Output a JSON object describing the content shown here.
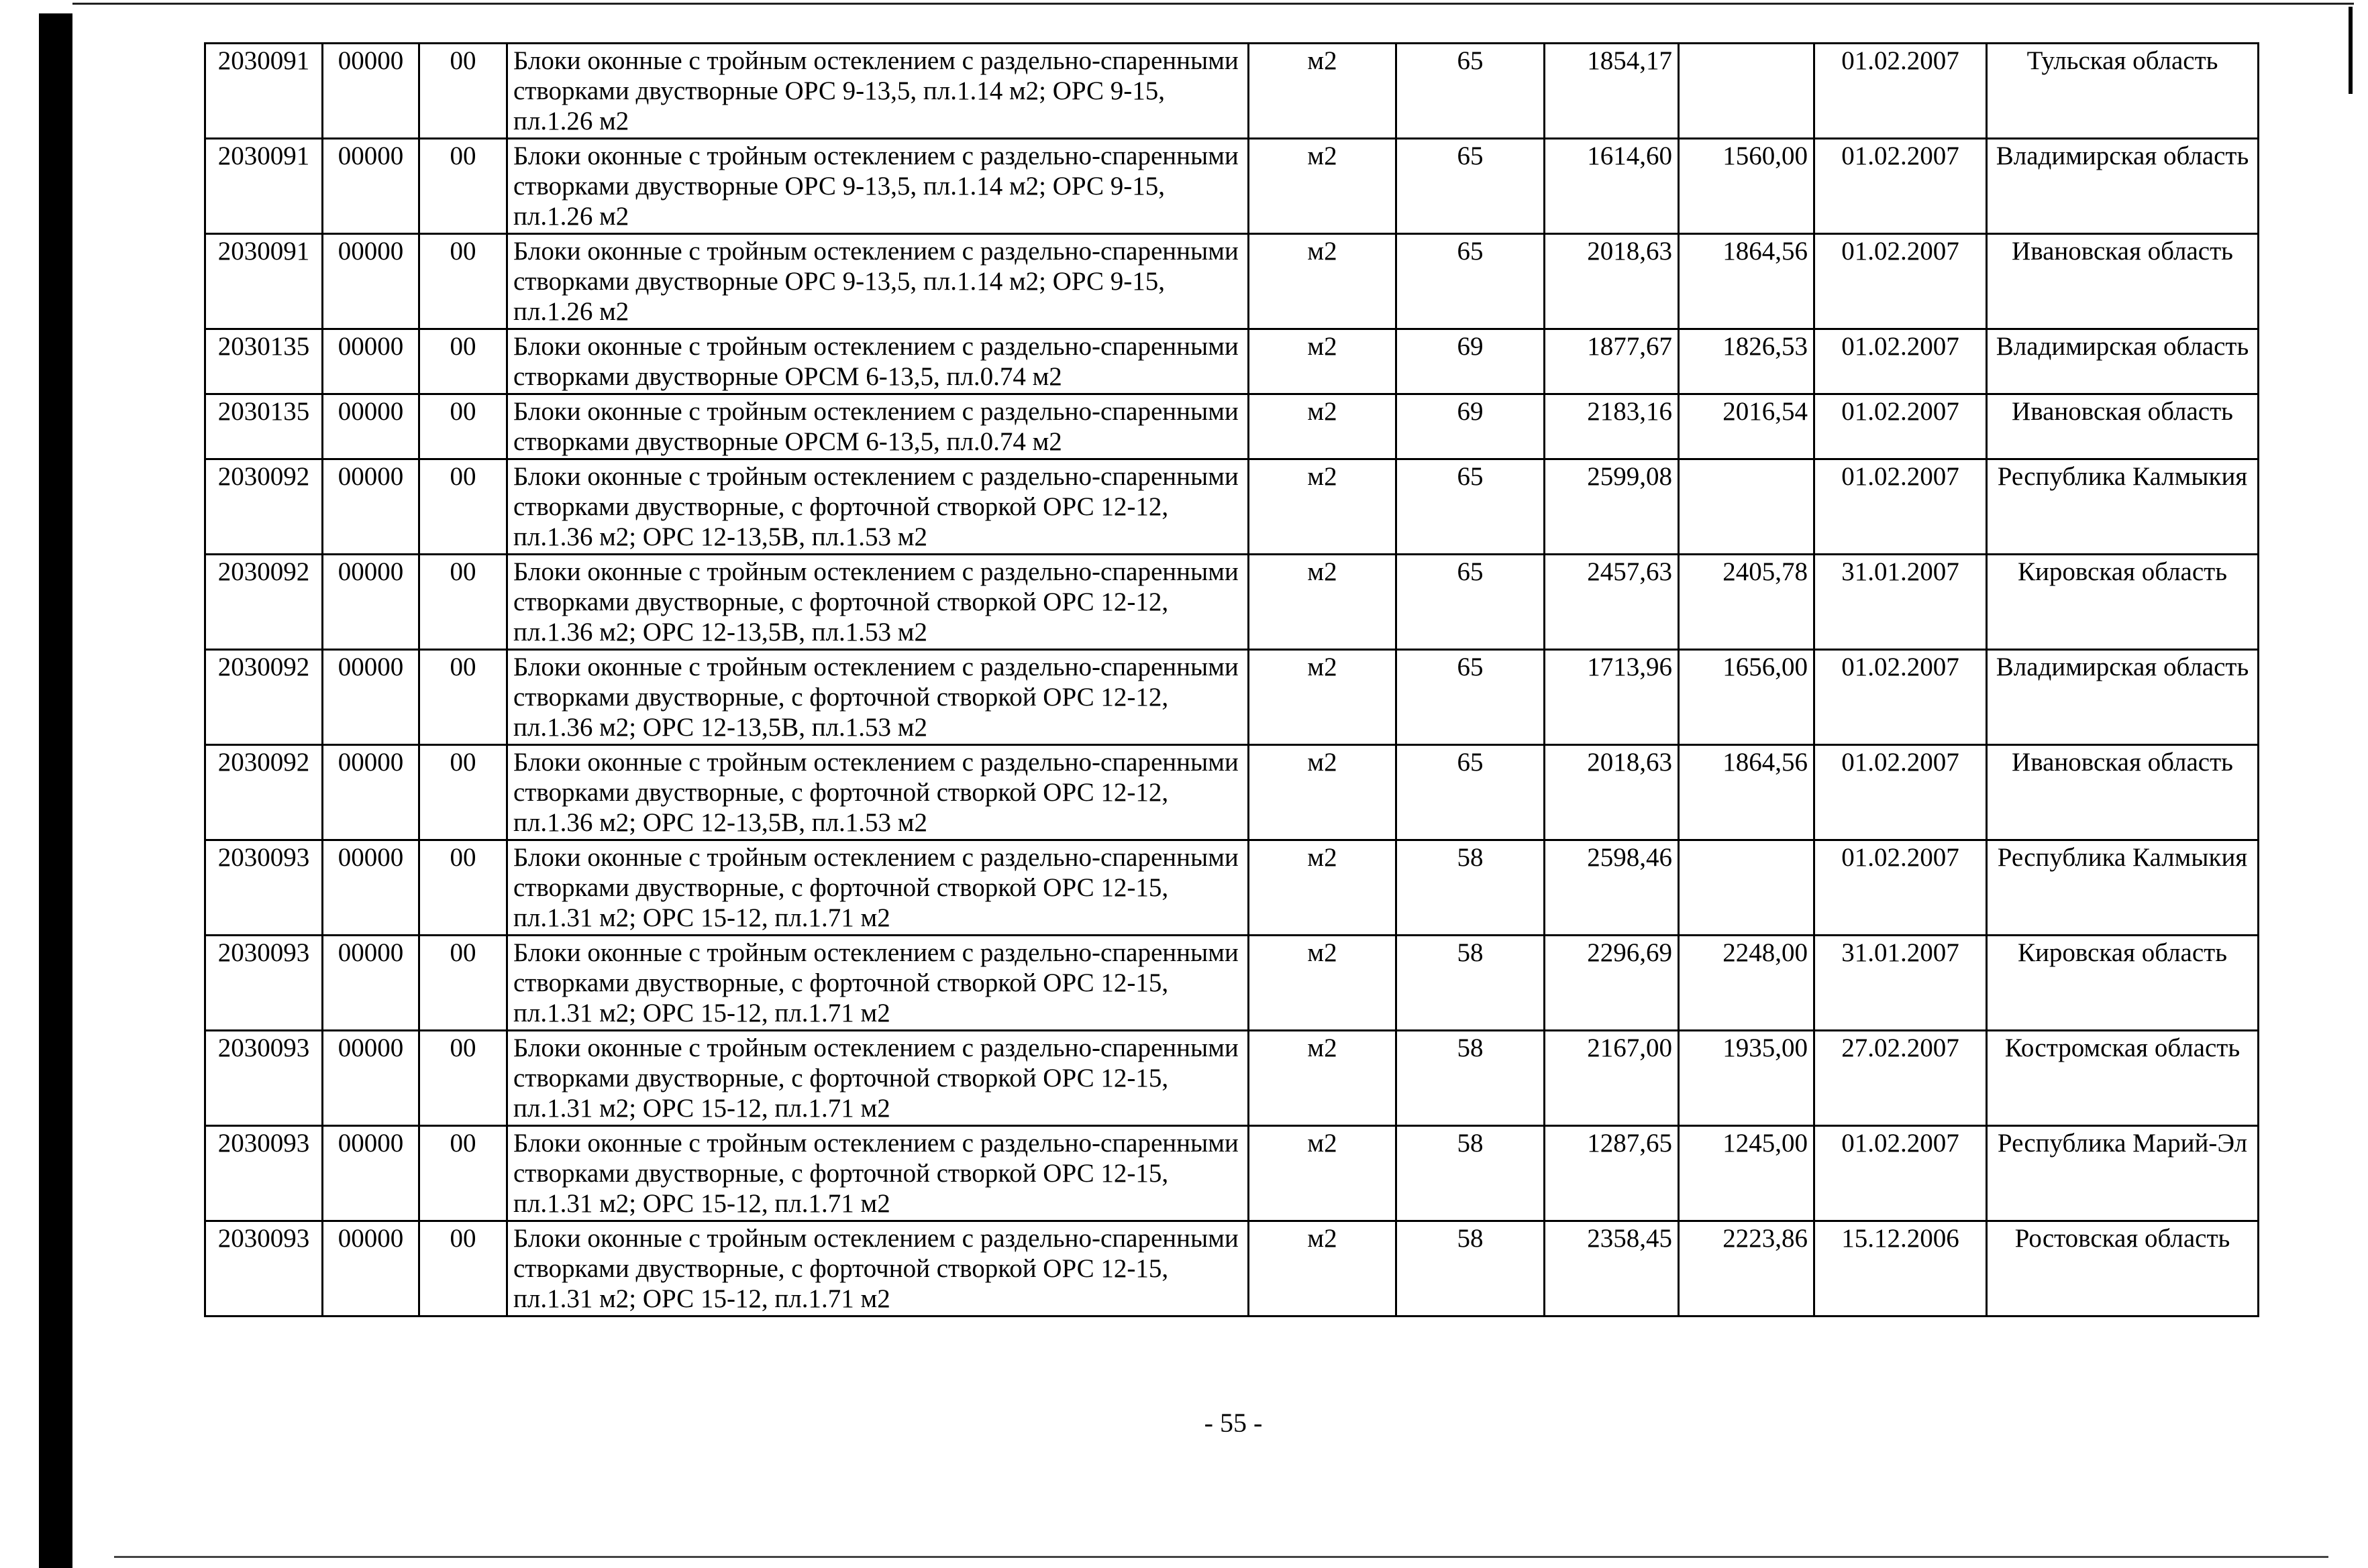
{
  "page_number": "- 55 -",
  "rows": [
    {
      "code": "2030091",
      "sub": "00000",
      "ext": "00",
      "name": "Блоки оконные с тройным остеклением с раздельно-спаренными створками двустворные ОРС 9-13,5, пл.1.14 м2; ОРС 9-15, пл.1.26 м2",
      "unit": "м2",
      "group": "65",
      "price1": "1854,17",
      "price2": "",
      "date": "01.02.2007",
      "region": "Тульская область"
    },
    {
      "code": "2030091",
      "sub": "00000",
      "ext": "00",
      "name": "Блоки оконные с тройным остеклением с раздельно-спаренными створками двустворные ОРС 9-13,5, пл.1.14 м2; ОРС 9-15, пл.1.26 м2",
      "unit": "м2",
      "group": "65",
      "price1": "1614,60",
      "price2": "1560,00",
      "date": "01.02.2007",
      "region": "Владимирская область"
    },
    {
      "code": "2030091",
      "sub": "00000",
      "ext": "00",
      "name": "Блоки оконные с тройным остеклением с раздельно-спаренными створками двустворные ОРС 9-13,5, пл.1.14 м2; ОРС 9-15, пл.1.26 м2",
      "unit": "м2",
      "group": "65",
      "price1": "2018,63",
      "price2": "1864,56",
      "date": "01.02.2007",
      "region": "Ивановская область"
    },
    {
      "code": "2030135",
      "sub": "00000",
      "ext": "00",
      "name": "Блоки оконные с тройным остеклением с раздельно-спаренными створками двустворные ОРСМ 6-13,5, пл.0.74 м2",
      "unit": "м2",
      "group": "69",
      "price1": "1877,67",
      "price2": "1826,53",
      "date": "01.02.2007",
      "region": "Владимирская область"
    },
    {
      "code": "2030135",
      "sub": "00000",
      "ext": "00",
      "name": "Блоки оконные с тройным остеклением с раздельно-спаренными створками двустворные ОРСМ 6-13,5, пл.0.74 м2",
      "unit": "м2",
      "group": "69",
      "price1": "2183,16",
      "price2": "2016,54",
      "date": "01.02.2007",
      "region": "Ивановская область"
    },
    {
      "code": "2030092",
      "sub": "00000",
      "ext": "00",
      "name": "Блоки оконные с тройным остеклением с раздельно-спаренными створками двустворные, с форточной створкой ОРС 12-12, пл.1.36 м2; ОРС 12-13,5В, пл.1.53 м2",
      "unit": "м2",
      "group": "65",
      "price1": "2599,08",
      "price2": "",
      "date": "01.02.2007",
      "region": "Республика Калмыкия"
    },
    {
      "code": "2030092",
      "sub": "00000",
      "ext": "00",
      "name": "Блоки оконные с тройным остеклением с раздельно-спаренными створками двустворные, с форточной створкой ОРС 12-12, пл.1.36 м2; ОРС 12-13,5В, пл.1.53 м2",
      "unit": "м2",
      "group": "65",
      "price1": "2457,63",
      "price2": "2405,78",
      "date": "31.01.2007",
      "region": "Кировская область"
    },
    {
      "code": "2030092",
      "sub": "00000",
      "ext": "00",
      "name": "Блоки оконные с тройным остеклением с раздельно-спаренными створками двустворные, с форточной створкой ОРС 12-12, пл.1.36 м2; ОРС 12-13,5В, пл.1.53 м2",
      "unit": "м2",
      "group": "65",
      "price1": "1713,96",
      "price2": "1656,00",
      "date": "01.02.2007",
      "region": "Владимирская область"
    },
    {
      "code": "2030092",
      "sub": "00000",
      "ext": "00",
      "name": "Блоки оконные с тройным остеклением с раздельно-спаренными створками двустворные, с форточной створкой ОРС 12-12, пл.1.36 м2; ОРС 12-13,5В, пл.1.53 м2",
      "unit": "м2",
      "group": "65",
      "price1": "2018,63",
      "price2": "1864,56",
      "date": "01.02.2007",
      "region": "Ивановская область"
    },
    {
      "code": "2030093",
      "sub": "00000",
      "ext": "00",
      "name": "Блоки оконные с тройным остеклением с раздельно-спаренными створками двустворные, с форточной створкой ОРС 12-15, пл.1.31 м2; ОРС 15-12, пл.1.71 м2",
      "unit": "м2",
      "group": "58",
      "price1": "2598,46",
      "price2": "",
      "date": "01.02.2007",
      "region": "Республика Калмыкия"
    },
    {
      "code": "2030093",
      "sub": "00000",
      "ext": "00",
      "name": "Блоки оконные с тройным остеклением с раздельно-спаренными створками двустворные, с форточной створкой ОРС 12-15, пл.1.31 м2; ОРС 15-12, пл.1.71 м2",
      "unit": "м2",
      "group": "58",
      "price1": "2296,69",
      "price2": "2248,00",
      "date": "31.01.2007",
      "region": "Кировская область"
    },
    {
      "code": "2030093",
      "sub": "00000",
      "ext": "00",
      "name": "Блоки оконные с тройным остеклением с раздельно-спаренными створками двустворные, с форточной створкой ОРС 12-15, пл.1.31 м2; ОРС 15-12, пл.1.71 м2",
      "unit": "м2",
      "group": "58",
      "price1": "2167,00",
      "price2": "1935,00",
      "date": "27.02.2007",
      "region": "Костромская область"
    },
    {
      "code": "2030093",
      "sub": "00000",
      "ext": "00",
      "name": "Блоки оконные с тройным остеклением с раздельно-спаренными створками двустворные, с форточной створкой ОРС 12-15, пл.1.31 м2; ОРС 15-12, пл.1.71 м2",
      "unit": "м2",
      "group": "58",
      "price1": "1287,65",
      "price2": "1245,00",
      "date": "01.02.2007",
      "region": "Республика Марий-Эл"
    },
    {
      "code": "2030093",
      "sub": "00000",
      "ext": "00",
      "name": "Блоки оконные с тройным остеклением с раздельно-спаренными створками двустворные, с форточной створкой ОРС 12-15, пл.1.31 м2; ОРС 15-12, пл.1.71 м2",
      "unit": "м2",
      "group": "58",
      "price1": "2358,45",
      "price2": "2223,86",
      "date": "15.12.2006",
      "region": "Ростовская область"
    }
  ]
}
